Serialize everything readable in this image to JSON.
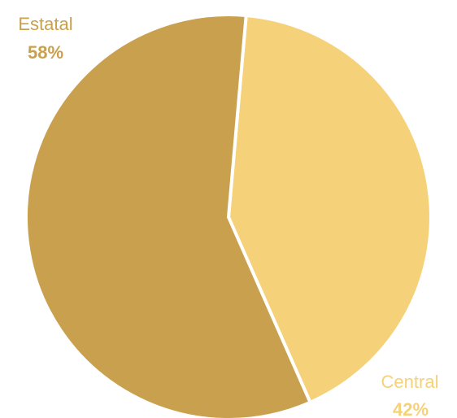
{
  "chart_data": {
    "type": "pie",
    "title": "",
    "start_angle_deg": 5,
    "direction": "clockwise_starting_with_last",
    "slices": [
      {
        "label": "Estatal",
        "value": 58,
        "value_label": "58%",
        "color": "#c9a04e"
      },
      {
        "label": "Central",
        "value": 42,
        "value_label": "42%",
        "color": "#f5d27a"
      }
    ]
  }
}
